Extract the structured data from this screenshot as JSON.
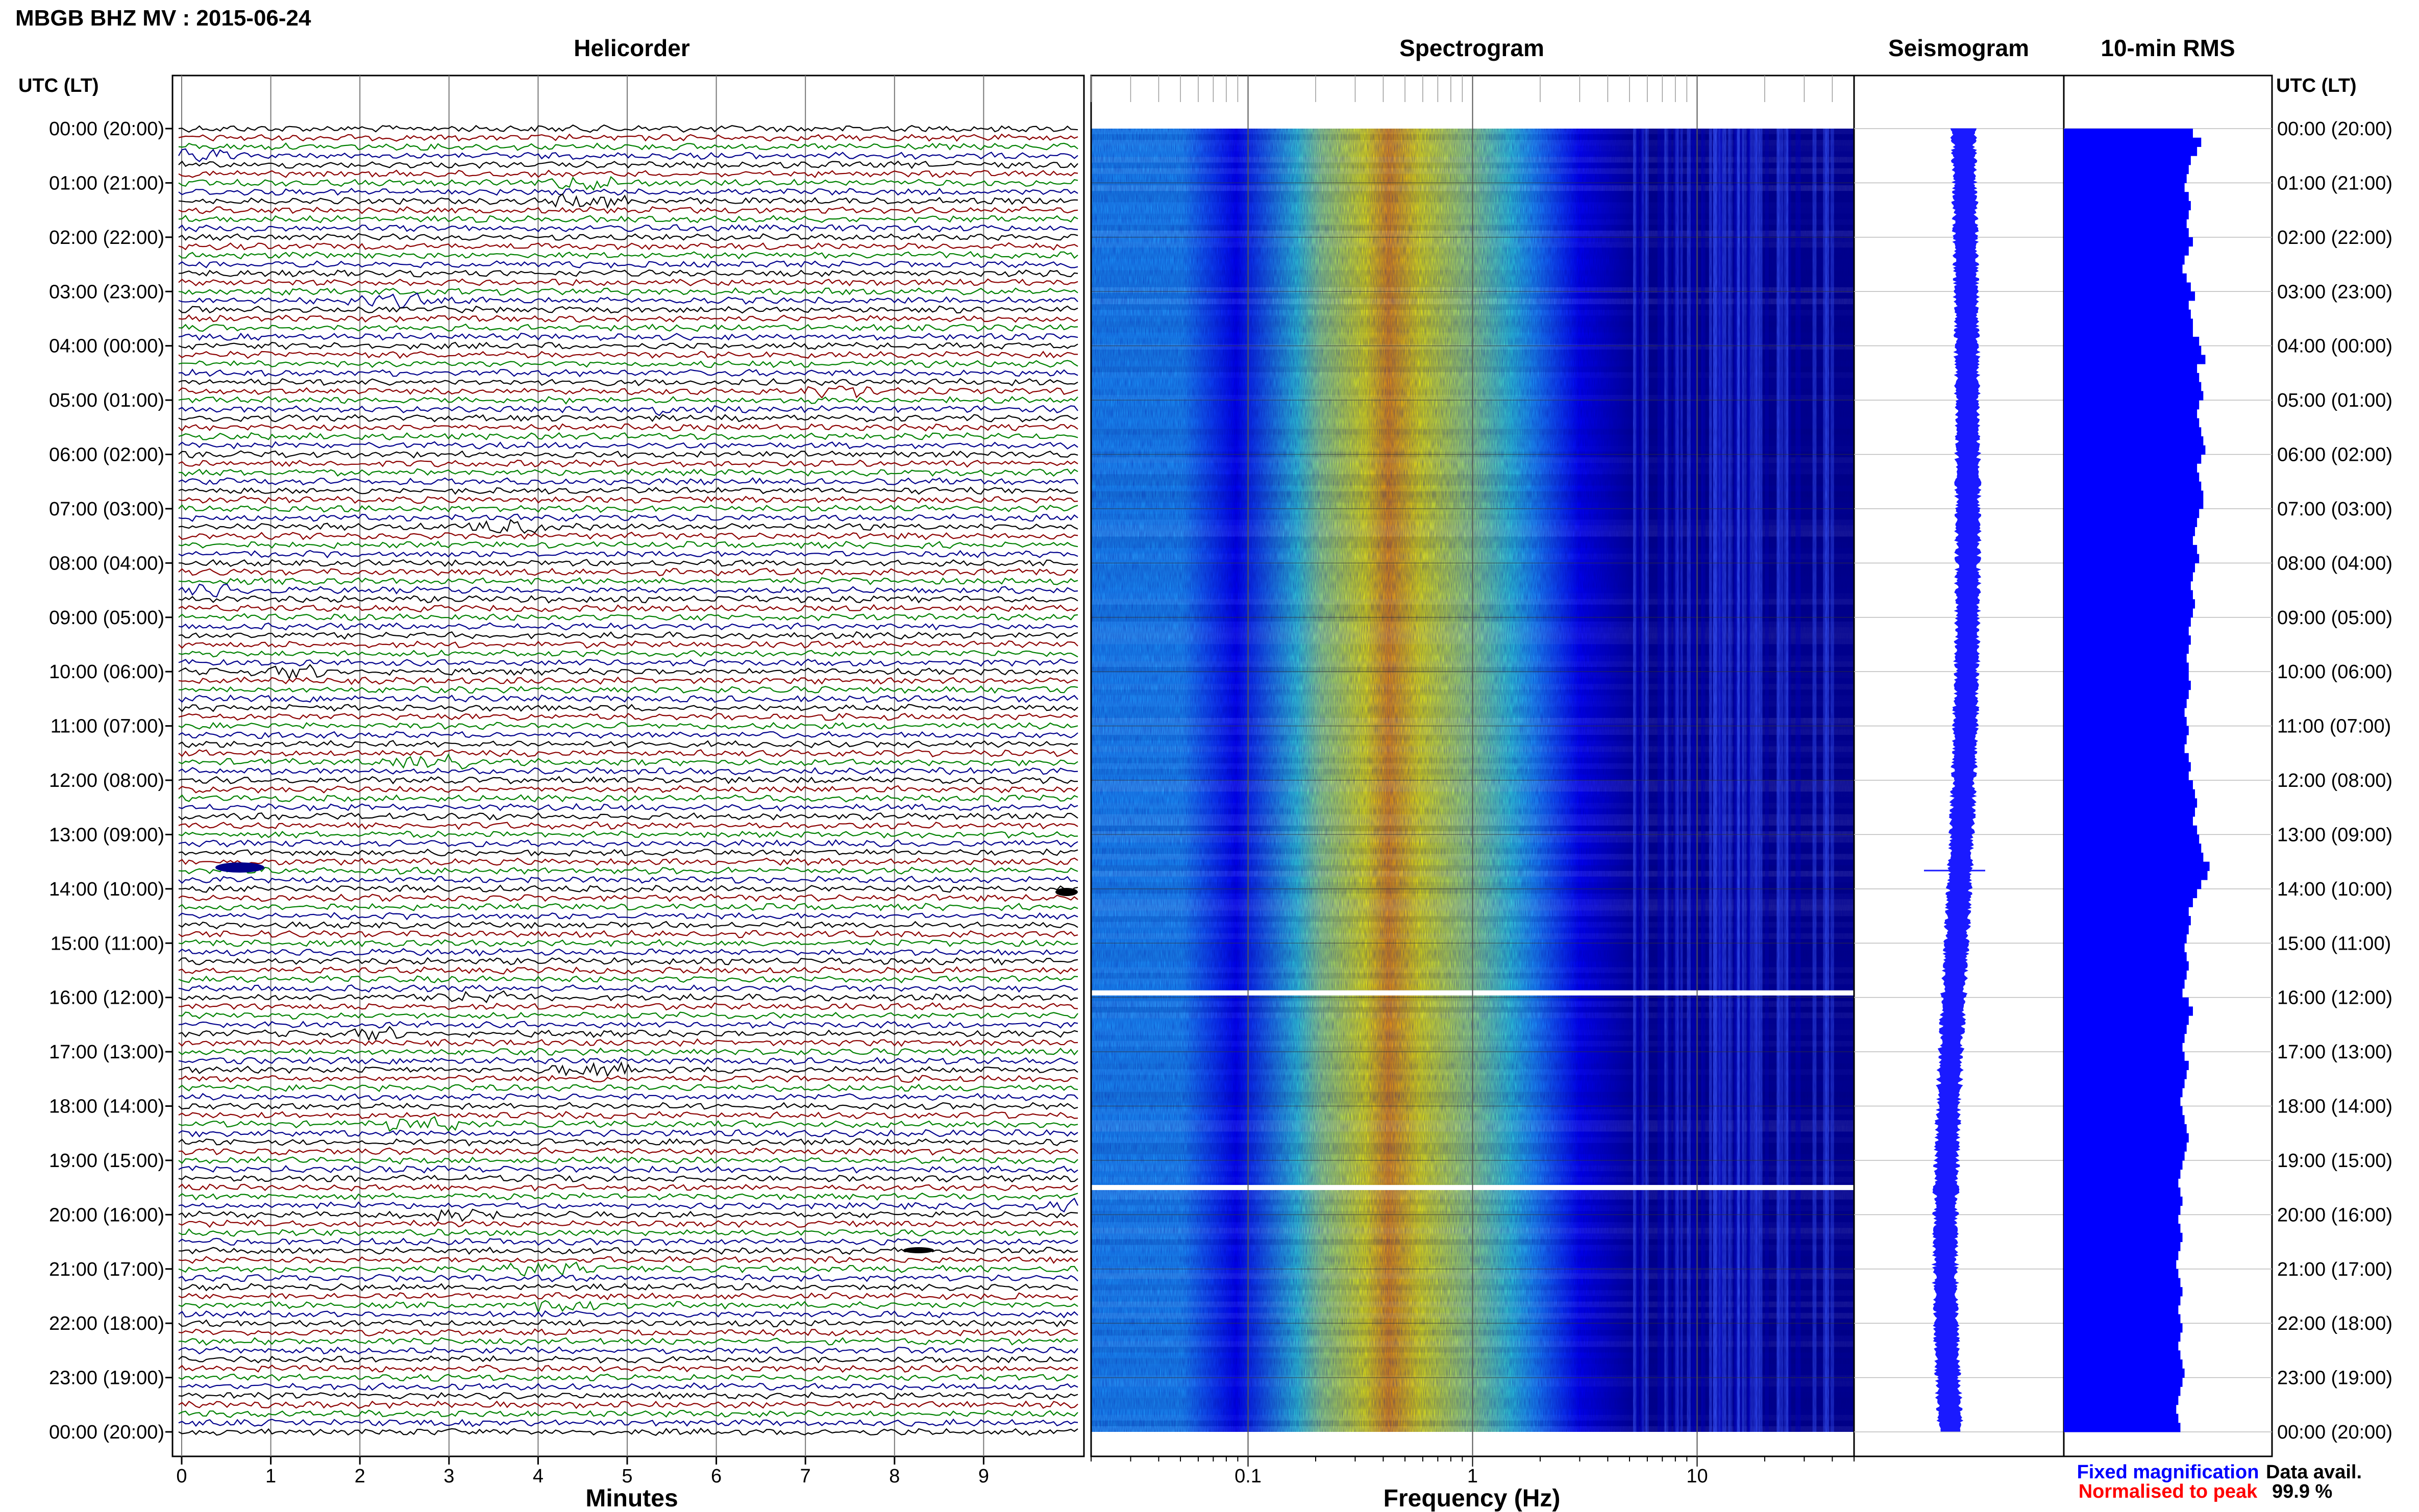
{
  "header": {
    "station_title": "MBGB BHZ MV : 2015-06-24",
    "panel_titles": {
      "helicorder": "Helicorder",
      "spectrogram": "Spectrogram",
      "seismogram": "Seismogram",
      "rms": "10-min RMS"
    },
    "axis_header_left": "UTC (LT)",
    "axis_header_right": "UTC (LT)"
  },
  "footer": {
    "legend_fixed": "Fixed magnification",
    "legend_normalised": "Normalised to peak",
    "data_avail_label": "Data avail.",
    "data_avail_value": "99.9 %"
  },
  "colors": {
    "legend_fixed": "#0000ff",
    "legend_normalised": "#ff0000",
    "trace_colors": [
      "#000000",
      "#8b0000",
      "#008000",
      "#00008b"
    ],
    "seismogram": "#1a1aff",
    "rms_bar": "#0000ff",
    "spectrogram_colormap": [
      "#00008b",
      "#0000ff",
      "#1ea0ff",
      "#33e0e0",
      "#a0f080",
      "#ffff00",
      "#ffa000",
      "#ff3000"
    ]
  },
  "chart_data": [
    {
      "type": "line",
      "panel": "helicorder",
      "title": "Helicorder",
      "xlabel": "Minutes",
      "x_ticks": [
        "0",
        "1",
        "2",
        "3",
        "4",
        "5",
        "6",
        "7",
        "8",
        "9"
      ],
      "xlim": [
        0,
        10
      ],
      "y_time_labels": [
        "00:00 (20:00)",
        "01:00 (21:00)",
        "02:00 (22:00)",
        "03:00 (23:00)",
        "04:00 (00:00)",
        "05:00 (01:00)",
        "06:00 (02:00)",
        "07:00 (03:00)",
        "08:00 (04:00)",
        "09:00 (05:00)",
        "10:00 (06:00)",
        "11:00 (07:00)",
        "12:00 (08:00)",
        "13:00 (09:00)",
        "14:00 (10:00)",
        "15:00 (11:00)",
        "16:00 (12:00)",
        "17:00 (13:00)",
        "18:00 (14:00)",
        "19:00 (15:00)",
        "20:00 (16:00)",
        "21:00 (17:00)",
        "22:00 (18:00)",
        "23:00 (19:00)",
        "00:00 (20:00)"
      ],
      "rows_per_hour": 6,
      "grid": true
    },
    {
      "type": "heatmap",
      "panel": "spectrogram",
      "title": "Spectrogram",
      "xlabel": "Frequency (Hz)",
      "x_scale": "log",
      "xlim": [
        0.02,
        50
      ],
      "x_tick_labels": [
        "0.1",
        "1",
        "10"
      ],
      "dominant_band_hz": [
        0.2,
        0.6
      ],
      "data_gaps_utc": [
        "15:55",
        "19:30"
      ],
      "grid": true
    },
    {
      "type": "line",
      "panel": "seismogram",
      "title": "Seismogram"
    },
    {
      "type": "bar",
      "panel": "rms",
      "title": "10-min RMS",
      "interval_minutes": 10,
      "relative_values": [
        0.62,
        0.66,
        0.64,
        0.61,
        0.6,
        0.59,
        0.58,
        0.6,
        0.61,
        0.6,
        0.59,
        0.6,
        0.62,
        0.6,
        0.58,
        0.57,
        0.59,
        0.61,
        0.63,
        0.6,
        0.61,
        0.62,
        0.62,
        0.65,
        0.66,
        0.68,
        0.64,
        0.65,
        0.66,
        0.67,
        0.65,
        0.64,
        0.65,
        0.66,
        0.67,
        0.68,
        0.66,
        0.64,
        0.65,
        0.66,
        0.67,
        0.67,
        0.65,
        0.64,
        0.63,
        0.62,
        0.64,
        0.65,
        0.63,
        0.62,
        0.61,
        0.62,
        0.63,
        0.62,
        0.61,
        0.6,
        0.61,
        0.6,
        0.59,
        0.6,
        0.6,
        0.61,
        0.6,
        0.59,
        0.58,
        0.59,
        0.6,
        0.59,
        0.58,
        0.6,
        0.61,
        0.6,
        0.62,
        0.63,
        0.64,
        0.63,
        0.62,
        0.64,
        0.65,
        0.66,
        0.67,
        0.7,
        0.69,
        0.66,
        0.64,
        0.62,
        0.6,
        0.61,
        0.6,
        0.59,
        0.58,
        0.59,
        0.6,
        0.59,
        0.58,
        0.57,
        0.6,
        0.62,
        0.6,
        0.59,
        0.58,
        0.57,
        0.58,
        0.6,
        0.59,
        0.58,
        0.57,
        0.56,
        0.57,
        0.58,
        0.59,
        0.6,
        0.59,
        0.58,
        0.57,
        0.56,
        0.55,
        0.56,
        0.57,
        0.56,
        0.55,
        0.56,
        0.57,
        0.56,
        0.55,
        0.54,
        0.55,
        0.56,
        0.57,
        0.56,
        0.55,
        0.56,
        0.57,
        0.56,
        0.55,
        0.56,
        0.57,
        0.58,
        0.57,
        0.56,
        0.55,
        0.54,
        0.55,
        0.56
      ]
    }
  ]
}
